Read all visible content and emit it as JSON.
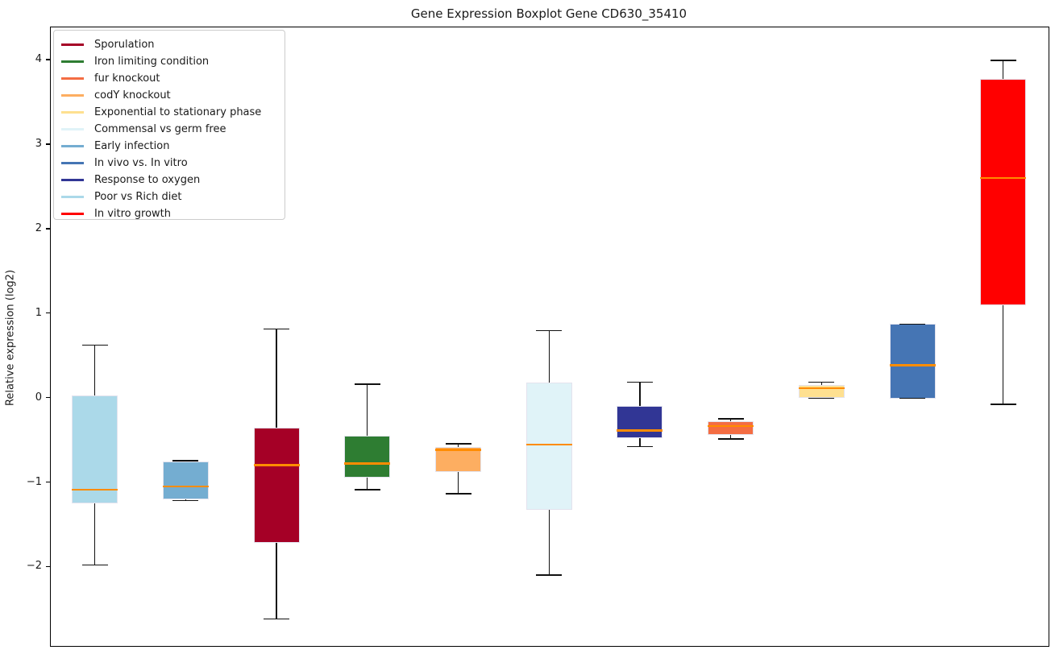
{
  "chart_data": {
    "type": "boxplot",
    "title": "Gene Expression Boxplot Gene CD630_35410",
    "ylabel": "Relative expression (log2)",
    "xlabel": "",
    "grid": false,
    "legend_position": "upper-left",
    "ylim": [
      -2.93,
      4.39
    ],
    "yticks": [
      {
        "v": 4,
        "label": "4"
      },
      {
        "v": 3,
        "label": "3"
      },
      {
        "v": 2,
        "label": "2"
      },
      {
        "v": 1,
        "label": "1"
      },
      {
        "v": 0,
        "label": "0"
      },
      {
        "v": -1,
        "label": "−1"
      },
      {
        "v": -2,
        "label": "−2"
      }
    ],
    "median_color": "#FF8C00",
    "whisker_color": "#111111",
    "legend": [
      {
        "label": "Sporulation",
        "color": "#A50026"
      },
      {
        "label": "Iron limiting condition",
        "color": "#2E7D32"
      },
      {
        "label": "fur knockout",
        "color": "#F46D43"
      },
      {
        "label": "codY knockout",
        "color": "#FDAE61"
      },
      {
        "label": "Exponential to stationary phase",
        "color": "#FEE090"
      },
      {
        "label": "Commensal vs germ free",
        "color": "#E0F3F8"
      },
      {
        "label": "Early infection",
        "color": "#74ADD1"
      },
      {
        "label": "In vivo vs. In vitro",
        "color": "#4575B4"
      },
      {
        "label": "Response to oxygen",
        "color": "#313695"
      },
      {
        "label": "Poor vs Rich diet",
        "color": "#ABD9E9"
      },
      {
        "label": "In vitro growth",
        "color": "#FF0000"
      }
    ],
    "series": [
      {
        "name": "Poor vs Rich diet",
        "color": "#ABD9E9",
        "whisker_low": -1.97,
        "q1": -1.24,
        "median": -1.08,
        "q3": 0.03,
        "whisker_high": 0.63
      },
      {
        "name": "Early infection",
        "color": "#74ADD1",
        "whisker_low": -1.21,
        "q1": -1.2,
        "median": -1.04,
        "q3": -0.75,
        "whisker_high": -0.74
      },
      {
        "name": "Sporulation",
        "color": "#A50026",
        "whisker_low": -2.61,
        "q1": -1.71,
        "median": -0.79,
        "q3": -0.35,
        "whisker_high": 0.82
      },
      {
        "name": "Iron limiting condition",
        "color": "#2E7D32",
        "whisker_low": -1.08,
        "q1": -0.94,
        "median": -0.77,
        "q3": -0.44,
        "whisker_high": 0.17
      },
      {
        "name": "codY knockout",
        "color": "#FDAE61",
        "whisker_low": -1.13,
        "q1": -0.87,
        "median": -0.61,
        "q3": -0.58,
        "whisker_high": -0.54
      },
      {
        "name": "Commensal vs germ free",
        "color": "#E0F3F8",
        "whisker_low": -2.09,
        "q1": -1.32,
        "median": -0.55,
        "q3": 0.19,
        "whisker_high": 0.8
      },
      {
        "name": "Response to oxygen",
        "color": "#313695",
        "whisker_low": -0.57,
        "q1": -0.47,
        "median": -0.38,
        "q3": -0.09,
        "whisker_high": 0.19
      },
      {
        "name": "fur knockout",
        "color": "#F46D43",
        "whisker_low": -0.48,
        "q1": -0.43,
        "median": -0.33,
        "q3": -0.27,
        "whisker_high": -0.24
      },
      {
        "name": "Exponential to stationary phase",
        "color": "#FEE090",
        "whisker_low": 0.0,
        "q1": 0.01,
        "median": 0.12,
        "q3": 0.16,
        "whisker_high": 0.19
      },
      {
        "name": "In vivo vs. In vitro",
        "color": "#4575B4",
        "whisker_low": 0.0,
        "q1": 0.0,
        "median": 0.39,
        "q3": 0.88,
        "whisker_high": 0.88
      },
      {
        "name": "In vitro growth",
        "color": "#FF0000",
        "whisker_low": -0.07,
        "q1": 1.1,
        "median": 2.61,
        "q3": 3.78,
        "whisker_high": 4.0
      }
    ]
  }
}
